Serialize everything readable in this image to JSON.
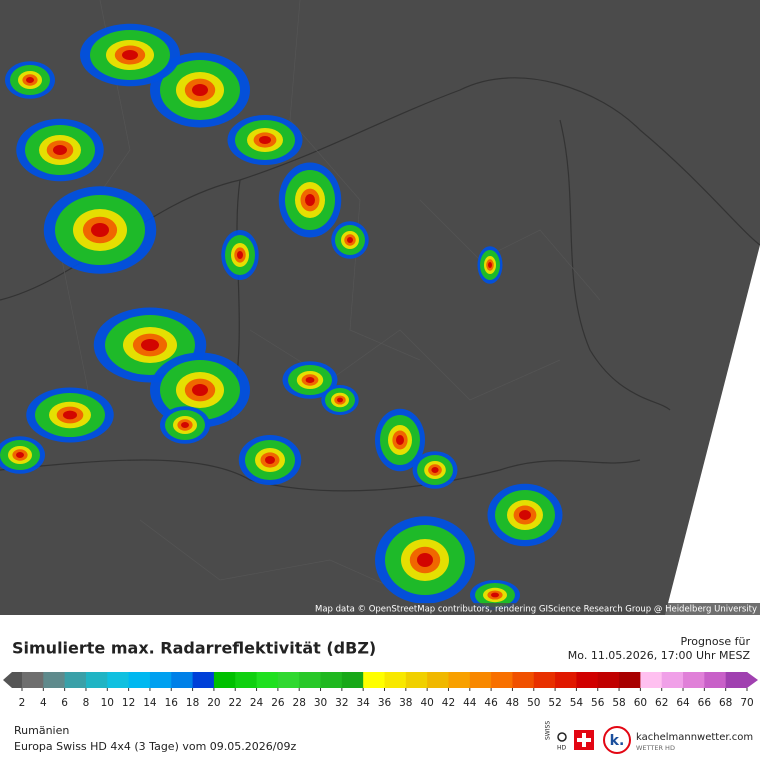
{
  "map": {
    "attribution": "Map data © OpenStreetMap contributors, rendering GIScience Research Group @ Heidelberg University"
  },
  "header": {
    "title": "Simulierte max. Radarreflektivität (dBZ)",
    "forecast_label": "Prognose für",
    "forecast_time": "Mo. 11.05.2026, 17:00 Uhr MESZ"
  },
  "legend": {
    "ticks": [
      2,
      4,
      6,
      8,
      10,
      12,
      14,
      16,
      18,
      20,
      22,
      24,
      26,
      28,
      30,
      32,
      34,
      36,
      38,
      40,
      42,
      44,
      46,
      48,
      50,
      52,
      54,
      56,
      58,
      60,
      62,
      64,
      66,
      68,
      70
    ],
    "colors": [
      "#6e6e6e",
      "#5f8a8c",
      "#3aa0a8",
      "#20b4c4",
      "#10c0e0",
      "#00b8f0",
      "#00a0f0",
      "#0080e8",
      "#0040d8",
      "#00c000",
      "#10d010",
      "#20e020",
      "#30d830",
      "#28c828",
      "#20b820",
      "#18a818",
      "#ffff00",
      "#f8e800",
      "#f0d000",
      "#f0b800",
      "#f8a000",
      "#f88800",
      "#f87000",
      "#f05000",
      "#e83000",
      "#e01800",
      "#d00000",
      "#c00000",
      "#a80000",
      "#ffc0f0",
      "#f0a0e8",
      "#e080d8",
      "#c860c8",
      "#a040b0"
    ]
  },
  "footer": {
    "region": "Rumänien",
    "model": "Europa Swiss HD 4x4 (3 Tage) vom 09.05.2026/09z",
    "swiss": "SWISS",
    "hd": "HD",
    "site": "kachelmannwetter.com",
    "brand": "WETTER HD"
  }
}
